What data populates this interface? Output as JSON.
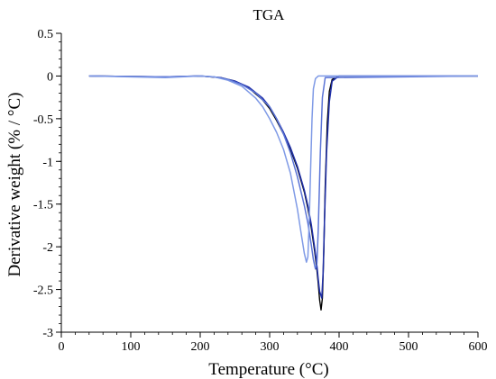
{
  "chart_data": {
    "type": "line",
    "title": "TGA",
    "xlabel": "Temperature (°C)",
    "ylabel": "Derivative weight (% / °C)",
    "xlim": [
      0,
      600
    ],
    "ylim": [
      -3,
      0.5
    ],
    "x_ticks": [
      0,
      100,
      200,
      300,
      400,
      500,
      600
    ],
    "y_ticks": [
      0.5,
      0,
      -0.5,
      -1,
      -1.5,
      -2,
      -2.5,
      -3
    ],
    "x_tick_labels": [
      "0",
      "100",
      "200",
      "300",
      "400",
      "500",
      "600"
    ],
    "y_tick_labels": [
      "0.5",
      "0",
      "-0.5",
      "-1",
      "-1.5",
      "-2",
      "-2.5",
      "-3"
    ],
    "grid": false,
    "legend": "none",
    "series": [
      {
        "color": "#000000",
        "x": [
          40,
          150,
          200,
          230,
          250,
          270,
          290,
          300,
          310,
          320,
          330,
          340,
          350,
          355,
          360,
          365,
          368,
          370,
          372,
          374,
          376,
          378,
          380,
          383,
          386,
          390,
          400,
          600
        ],
        "y": [
          0,
          -0.01,
          0,
          -0.02,
          -0.06,
          -0.14,
          -0.28,
          -0.38,
          -0.52,
          -0.68,
          -0.86,
          -1.08,
          -1.36,
          -1.55,
          -1.78,
          -2.06,
          -2.27,
          -2.43,
          -2.62,
          -2.74,
          -2.6,
          -2.05,
          -1.3,
          -0.55,
          -0.18,
          -0.04,
          0,
          0
        ]
      },
      {
        "color": "#1f2fa8",
        "x": [
          40,
          150,
          200,
          230,
          250,
          270,
          290,
          300,
          310,
          320,
          330,
          340,
          350,
          355,
          360,
          365,
          368,
          370,
          372,
          375,
          377,
          379,
          382,
          386,
          390,
          400,
          600
        ],
        "y": [
          0,
          -0.01,
          0,
          -0.02,
          -0.06,
          -0.13,
          -0.26,
          -0.36,
          -0.5,
          -0.66,
          -0.84,
          -1.06,
          -1.34,
          -1.52,
          -1.74,
          -2.02,
          -2.22,
          -2.38,
          -2.52,
          -2.6,
          -2.3,
          -1.7,
          -0.9,
          -0.3,
          -0.06,
          0,
          0
        ]
      },
      {
        "color": "#5b74d6",
        "x": [
          40,
          150,
          200,
          220,
          240,
          260,
          280,
          300,
          310,
          320,
          330,
          340,
          350,
          355,
          360,
          363,
          366,
          368,
          370,
          373,
          376,
          380,
          600
        ],
        "y": [
          0,
          -0.01,
          0,
          -0.01,
          -0.04,
          -0.1,
          -0.2,
          -0.36,
          -0.5,
          -0.68,
          -0.9,
          -1.18,
          -1.52,
          -1.72,
          -1.98,
          -2.15,
          -2.26,
          -2.2,
          -1.8,
          -0.9,
          -0.25,
          -0.02,
          0
        ]
      },
      {
        "color": "#7f9ae6",
        "x": [
          40,
          150,
          200,
          220,
          240,
          260,
          280,
          290,
          300,
          310,
          320,
          330,
          340,
          345,
          350,
          353,
          355,
          357,
          359,
          361,
          363,
          366,
          370,
          600
        ],
        "y": [
          0,
          -0.02,
          0,
          -0.01,
          -0.05,
          -0.12,
          -0.26,
          -0.36,
          -0.5,
          -0.66,
          -0.86,
          -1.14,
          -1.56,
          -1.82,
          -2.08,
          -2.18,
          -2.12,
          -1.7,
          -1.1,
          -0.5,
          -0.15,
          -0.03,
          0,
          0
        ]
      }
    ]
  }
}
